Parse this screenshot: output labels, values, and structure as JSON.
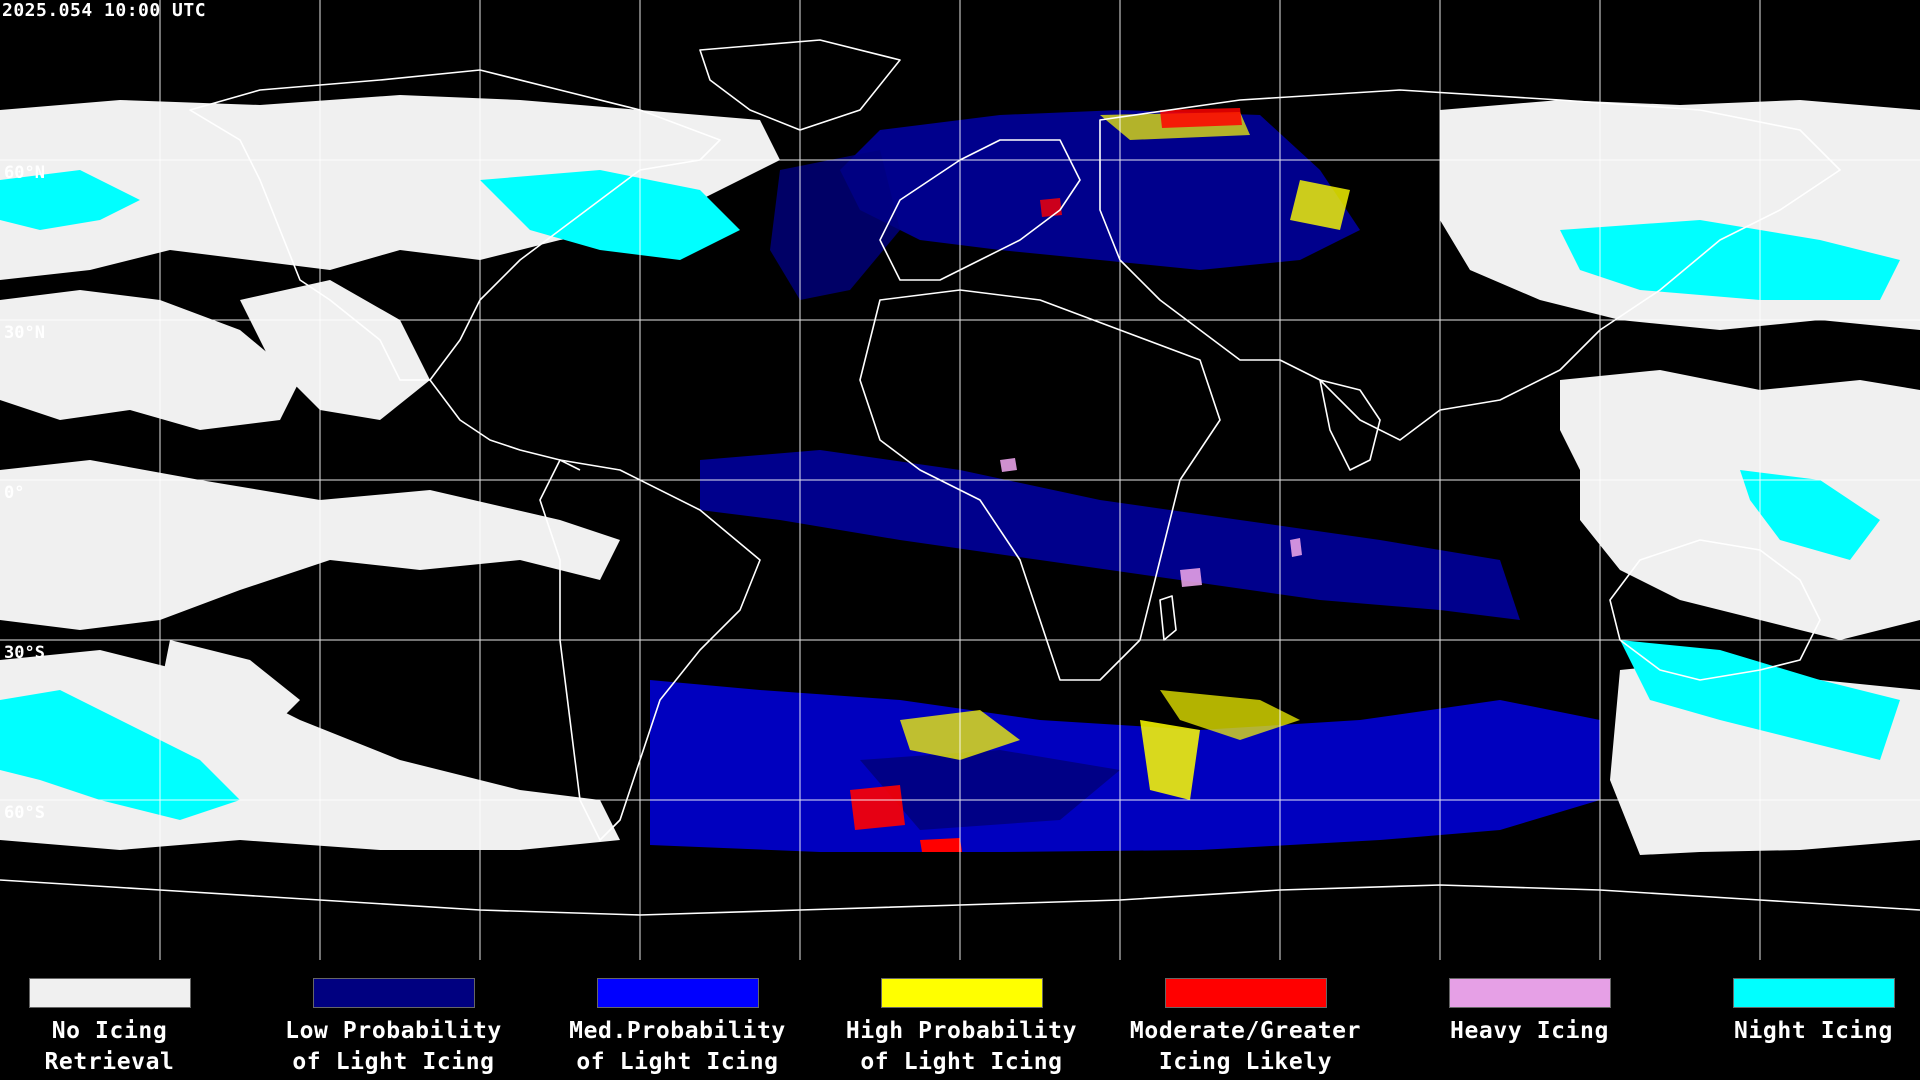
{
  "timestamp": "2025.054 10:00 UTC",
  "latitude_labels": [
    "60°N",
    "30°N",
    "0°",
    "30°S",
    "60°S"
  ],
  "legend": [
    {
      "line1": "No Icing",
      "line2": "Retrieval",
      "color": "#f0f0f0"
    },
    {
      "line1": "Low Probability",
      "line2": "of Light Icing",
      "color": "#000080"
    },
    {
      "line1": "Med.Probability",
      "line2": "of Light Icing",
      "color": "#0000ff"
    },
    {
      "line1": "High Probability",
      "line2": "of Light Icing",
      "color": "#ffff00"
    },
    {
      "line1": "Moderate/Greater",
      "line2": "Icing Likely",
      "color": "#ff0000"
    },
    {
      "line1": "Heavy Icing",
      "line2": "",
      "color": "#e6a0e6"
    },
    {
      "line1": "Night Icing",
      "line2": "",
      "color": "#00ffff"
    }
  ],
  "colors": {
    "background": "#000000",
    "grid": "#ffffff",
    "coastline": "#ffffff",
    "no_icing": "#f0f0f0",
    "night_icing": "#00ffff"
  }
}
